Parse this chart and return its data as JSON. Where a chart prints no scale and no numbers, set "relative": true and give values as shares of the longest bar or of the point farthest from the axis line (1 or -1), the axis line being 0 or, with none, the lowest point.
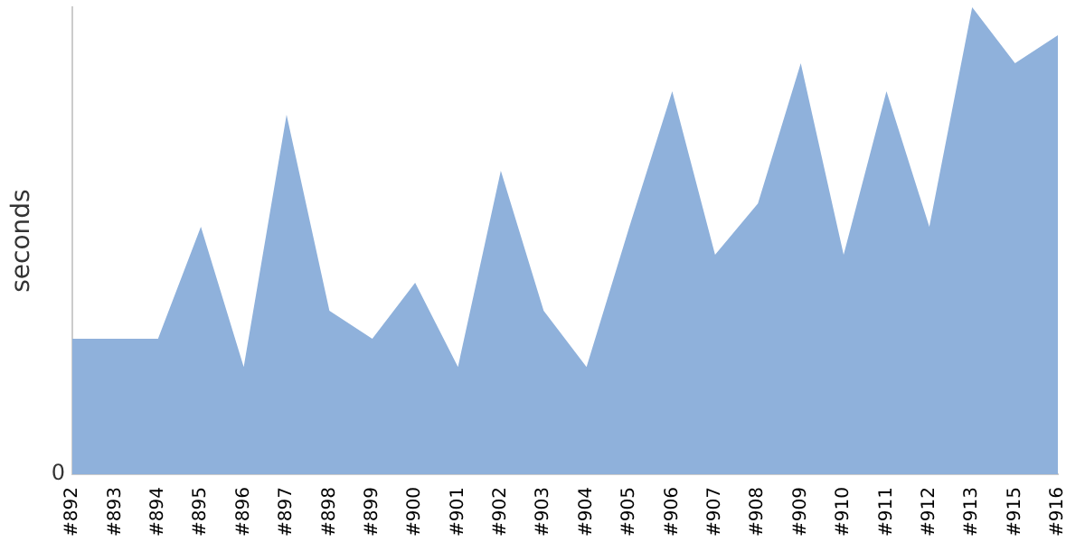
{
  "chart_data": {
    "type": "area",
    "ylabel": "seconds",
    "relative": true,
    "annotations": [
      "0"
    ],
    "grid": false,
    "legend": false,
    "marker": "none",
    "categories": [
      "#892",
      "#893",
      "#894",
      "#895",
      "#896",
      "#897",
      "#898",
      "#899",
      "#900",
      "#901",
      "#902",
      "#903",
      "#904",
      "#905",
      "#906",
      "#907",
      "#908",
      "#909",
      "#910",
      "#911",
      "#912",
      "#913",
      "#915",
      "#916"
    ],
    "series": [
      {
        "color": "#8fb1db",
        "values": [
          0.29,
          0.29,
          0.29,
          0.53,
          0.23,
          0.77,
          0.35,
          0.29,
          0.41,
          0.23,
          0.65,
          0.35,
          0.23,
          0.53,
          0.82,
          0.47,
          0.58,
          0.88,
          0.47,
          0.82,
          0.53,
          1,
          0.88,
          0.94
        ]
      }
    ]
  }
}
